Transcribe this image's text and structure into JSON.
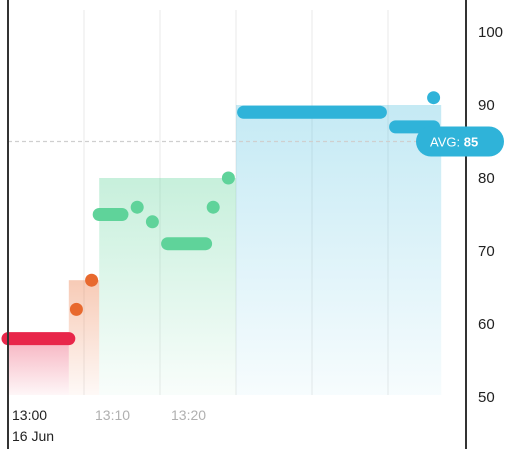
{
  "chart_data": {
    "type": "line",
    "xlabel": "",
    "ylabel": "",
    "ylim": [
      50,
      100
    ],
    "xlim_minutes": [
      0,
      28
    ],
    "y_ticks": [
      50,
      60,
      70,
      80,
      90,
      100
    ],
    "x_ticks": [
      {
        "minute": 0,
        "label": "13:00",
        "sublabel": "16 Jun"
      },
      {
        "minute": 10,
        "label": "13:10"
      },
      {
        "minute": 20,
        "label": "13:20"
      }
    ],
    "avg": {
      "value": 85,
      "label_prefix": "AVG:",
      "label_value": "85"
    },
    "colors": {
      "red": "#e8264a",
      "orange": "#e8692e",
      "green": "#5fd39a",
      "blue": "#2fb3d9",
      "avg_badge": "#2fb3d9",
      "grid": "#eaeaea",
      "axis": "#333333"
    },
    "fills": [
      {
        "x0": 0,
        "x1": 8,
        "color": "red",
        "value": 58
      },
      {
        "x0": 8,
        "x1": 12,
        "color": "orange",
        "value": 66
      },
      {
        "x0": 12,
        "x1": 30,
        "color": "green",
        "value": 80
      },
      {
        "x0": 30,
        "x1": 57,
        "color": "blue",
        "value": 90
      }
    ],
    "segments": [
      {
        "x0": 0,
        "x1": 8,
        "y": 58,
        "zone": "red"
      },
      {
        "x0": 12,
        "x1": 15,
        "y": 75,
        "zone": "green"
      },
      {
        "x0": 21,
        "x1": 26,
        "y": 71,
        "zone": "green"
      },
      {
        "x0": 31,
        "x1": 49,
        "y": 89,
        "zone": "blue"
      },
      {
        "x0": 51,
        "x1": 56,
        "y": 87,
        "zone": "blue"
      }
    ],
    "points": [
      {
        "x": 9,
        "y": 62,
        "zone": "orange"
      },
      {
        "x": 11,
        "y": 66,
        "zone": "orange"
      },
      {
        "x": 17,
        "y": 76,
        "zone": "green"
      },
      {
        "x": 19,
        "y": 74,
        "zone": "green"
      },
      {
        "x": 27,
        "y": 76,
        "zone": "green"
      },
      {
        "x": 29,
        "y": 80,
        "zone": "green"
      },
      {
        "x": 56,
        "y": 91,
        "zone": "blue"
      }
    ]
  }
}
